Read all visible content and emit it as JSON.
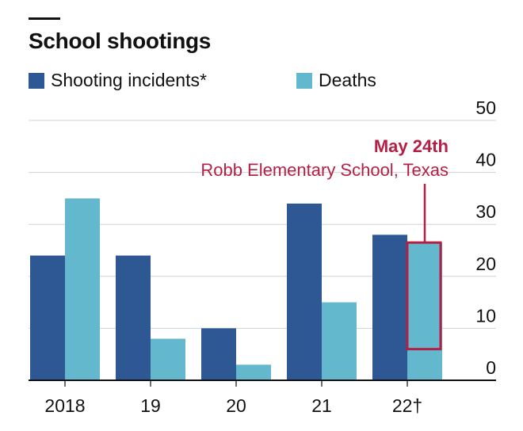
{
  "title": "School shootings",
  "legend": [
    {
      "label": "Shooting incidents*",
      "color": "#2d5893"
    },
    {
      "label": "Deaths",
      "color": "#63b8cd"
    }
  ],
  "annotation": {
    "date": "May 24th",
    "place": "Robb Elementary School, Texas",
    "color": "#b51f44",
    "category": "22†",
    "value_range": [
      6,
      26.5
    ]
  },
  "chart_data": {
    "type": "bar",
    "title": "School shootings",
    "categories": [
      "2018",
      "19",
      "20",
      "21",
      "22†"
    ],
    "series": [
      {
        "name": "Shooting incidents*",
        "color": "#2d5893",
        "values": [
          24,
          24,
          10,
          34,
          28
        ]
      },
      {
        "name": "Deaths",
        "color": "#63b8cd",
        "values": [
          35,
          8,
          3,
          15,
          26.5
        ]
      }
    ],
    "ylim": [
      0,
      50
    ],
    "yticks": [
      0,
      10,
      20,
      30,
      40,
      50
    ],
    "y_axis_position": "right",
    "grid": true,
    "legend_position": "top-left"
  }
}
